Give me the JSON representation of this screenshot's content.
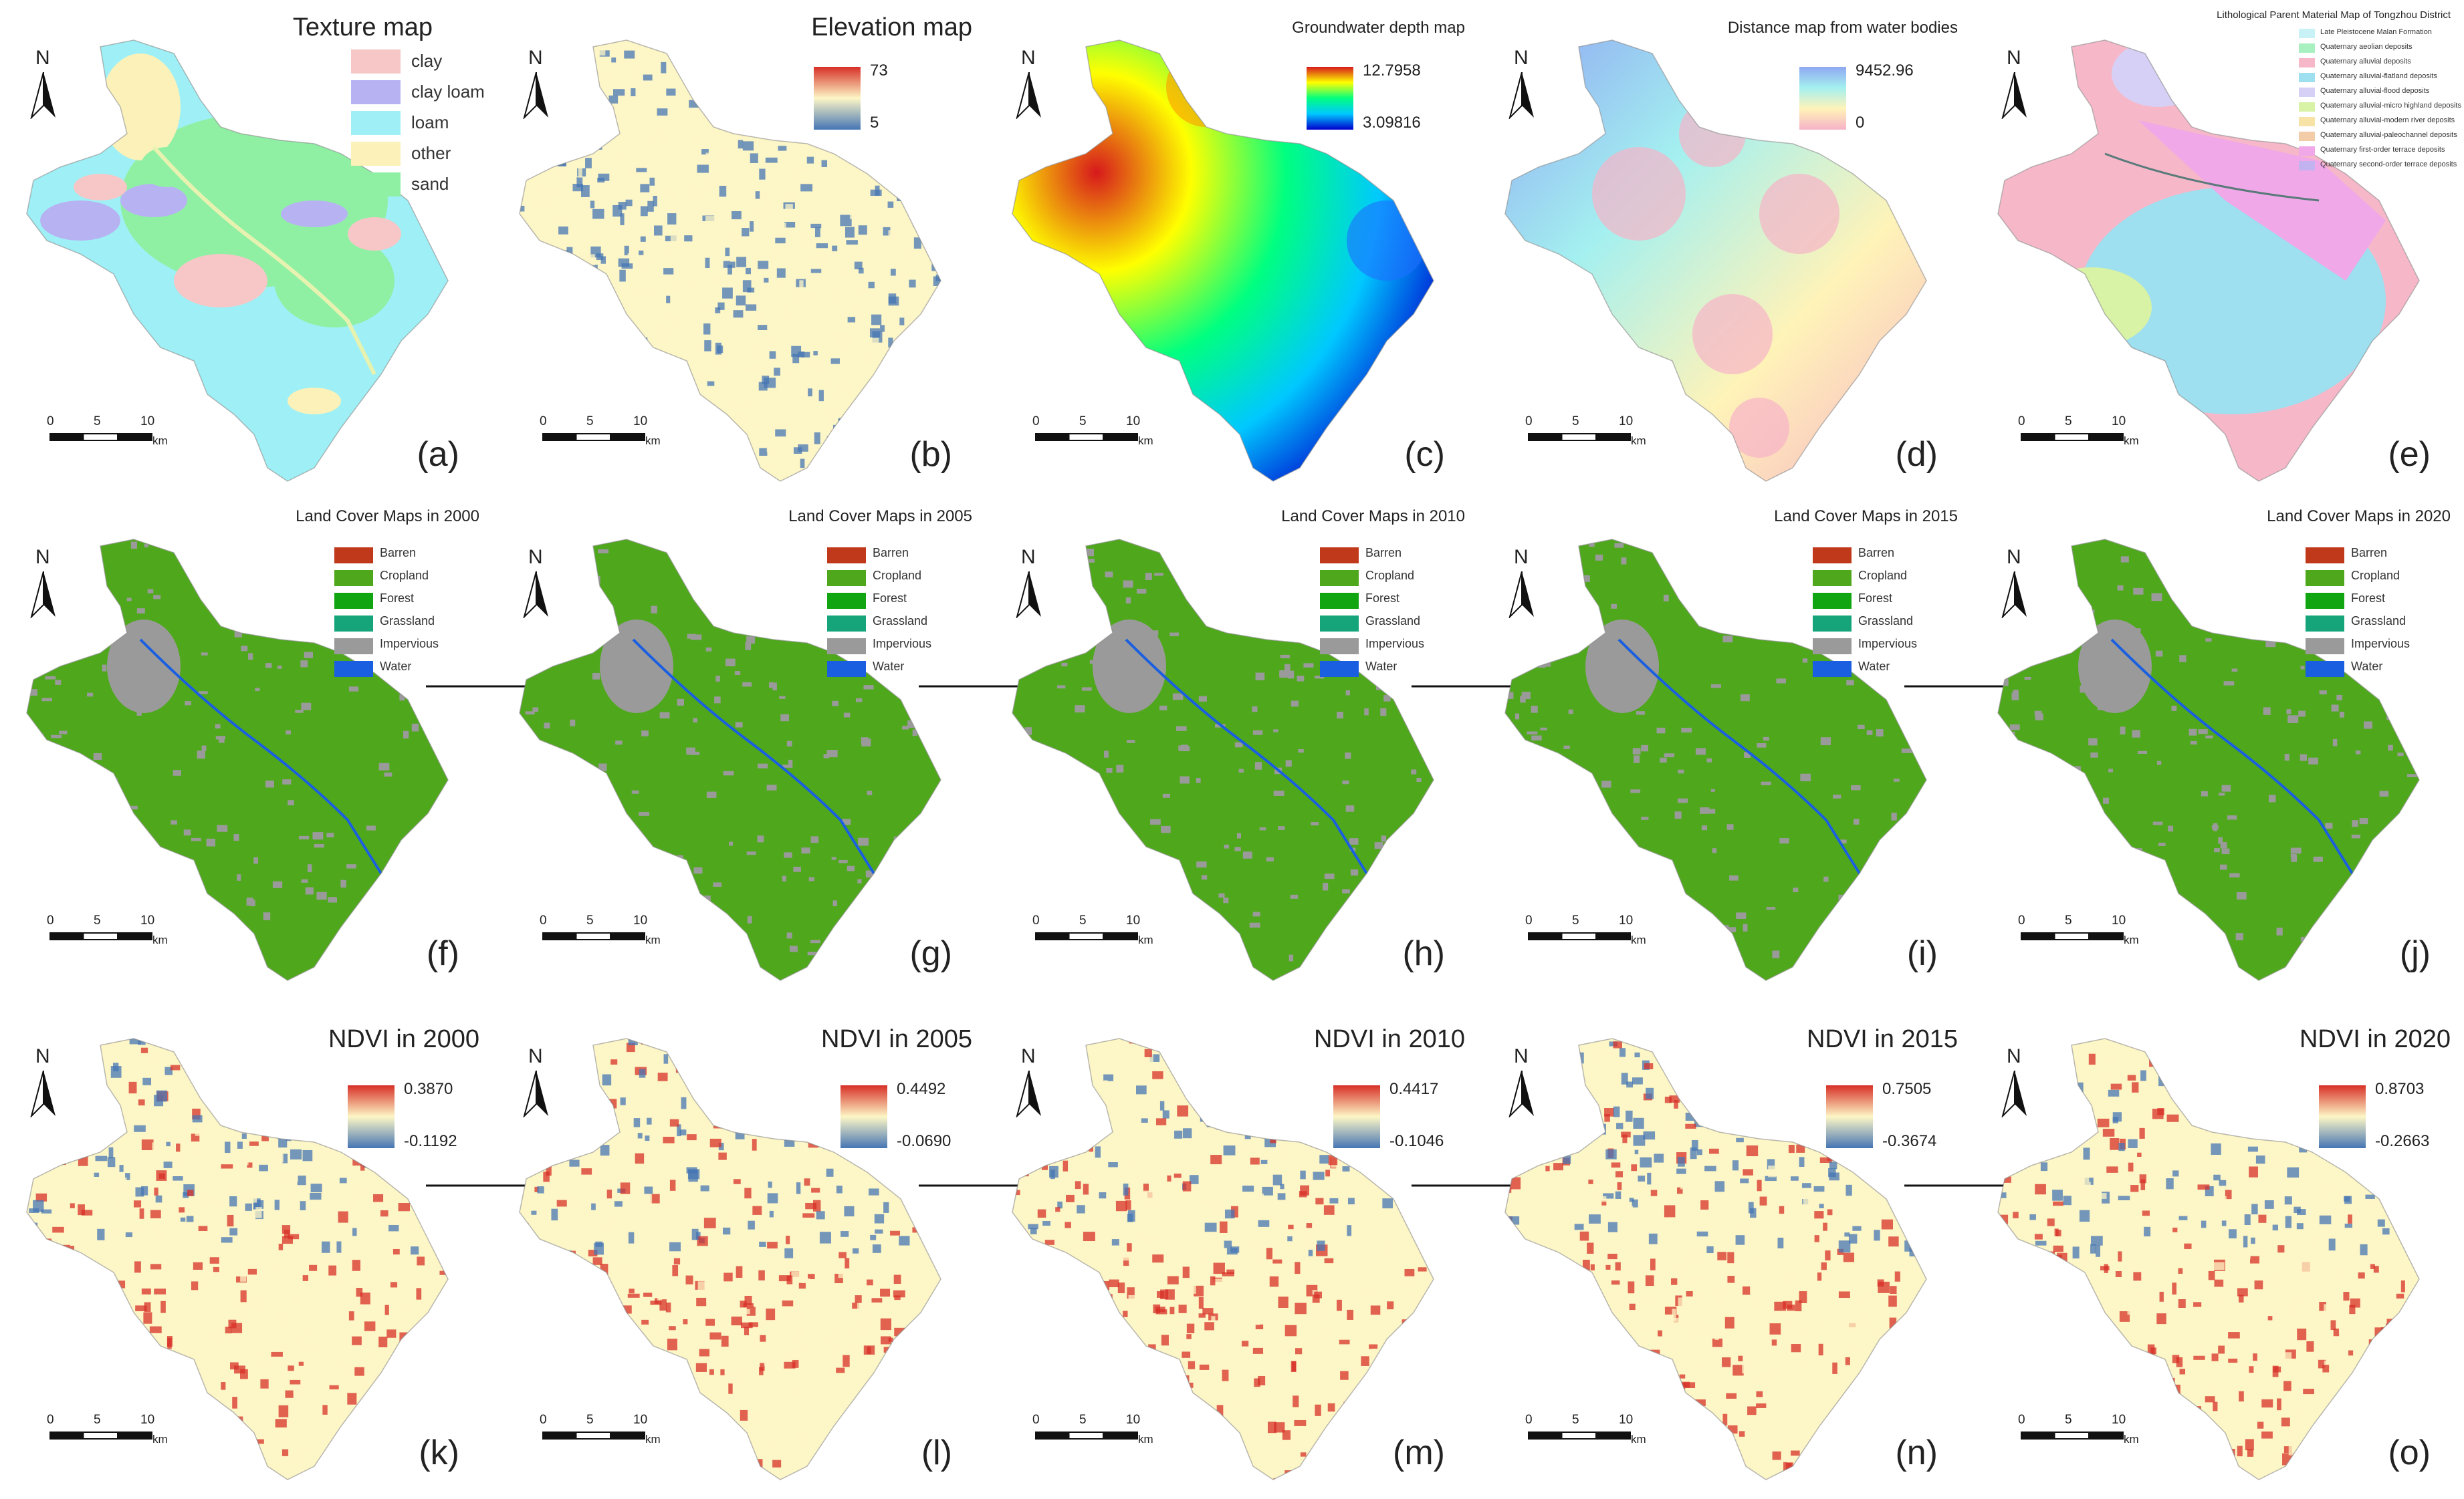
{
  "panels": [
    {
      "id": "a",
      "label": "(a)",
      "title": "Texture map",
      "kind": "texture",
      "legend": [
        "clay",
        "clay loam",
        "loam",
        "other",
        "sand"
      ],
      "legend_colors": [
        "#f6c7c6",
        "#b7b3f2",
        "#9ef0f6",
        "#fbf1b9",
        "#8ff0a4"
      ]
    },
    {
      "id": "b",
      "label": "(b)",
      "title": "Elevation map",
      "kind": "elevation",
      "ramp": {
        "max": "73",
        "min": "5",
        "colors": [
          "#d73027",
          "#fdf6c6",
          "#4575b4"
        ]
      }
    },
    {
      "id": "c",
      "label": "(c)",
      "title": "Groundwater depth map",
      "kind": "groundwater",
      "ramp": {
        "max": "12.7958",
        "min": "3.09816",
        "colors": [
          "#d7191c",
          "#ffff00",
          "#00ff80",
          "#00c8ff",
          "#0000cc"
        ]
      }
    },
    {
      "id": "d",
      "label": "(d)",
      "title": "Distance map from water bodies",
      "kind": "distance",
      "ramp": {
        "max": "9452.96",
        "min": "0",
        "colors": [
          "#8fa8f2",
          "#a4f0f0",
          "#fff3b8",
          "#f6b3c7"
        ]
      }
    },
    {
      "id": "e",
      "label": "(e)",
      "title": "Lithological Parent Material Map of Tongzhou District",
      "kind": "litho",
      "legend": [
        "Late Pleistocene Malan Formation",
        "Quaternary aeolian deposits",
        "Quaternary alluvial deposits",
        "Quaternary alluvial-flatland deposits",
        "Quaternary alluvial-flood deposits",
        "Quaternary alluvial-micro highland deposits",
        "Quaternary alluvial-modern river deposits",
        "Quaternary alluvial-paleochannel deposits",
        "Quaternary first-order terrace deposits",
        "Quaternary second-order terrace deposits"
      ],
      "legend_colors": [
        "#c9f2f6",
        "#a8f0c0",
        "#f6b8c9",
        "#9edff0",
        "#d6d0f6",
        "#d8f2a6",
        "#f7e3a6",
        "#f3cca8",
        "#f0a8e8",
        "#c2b3f0"
      ]
    },
    {
      "id": "f",
      "label": "(f)",
      "title": "Land Cover Maps in 2000",
      "kind": "landcover",
      "arrow": true
    },
    {
      "id": "g",
      "label": "(g)",
      "title": "Land Cover Maps in 2005",
      "kind": "landcover",
      "arrow": true
    },
    {
      "id": "h",
      "label": "(h)",
      "title": "Land Cover Maps in 2010",
      "kind": "landcover",
      "arrow": true
    },
    {
      "id": "i",
      "label": "(i)",
      "title": "Land Cover Maps in 2015",
      "kind": "landcover",
      "arrow": true
    },
    {
      "id": "j",
      "label": "(j)",
      "title": "Land Cover Maps in 2020",
      "kind": "landcover",
      "arrow": false
    },
    {
      "id": "k",
      "label": "(k)",
      "title": "NDVI in 2000",
      "kind": "ndvi",
      "arrow": true,
      "ramp": {
        "max": "0.3870",
        "min": "-0.1192"
      }
    },
    {
      "id": "l",
      "label": "(l)",
      "title": "NDVI in 2005",
      "kind": "ndvi",
      "arrow": true,
      "ramp": {
        "max": "0.4492",
        "min": "-0.0690"
      }
    },
    {
      "id": "m",
      "label": "(m)",
      "title": "NDVI in 2010",
      "kind": "ndvi",
      "arrow": true,
      "ramp": {
        "max": "0.4417",
        "min": "-0.1046"
      }
    },
    {
      "id": "n",
      "label": "(n)",
      "title": "NDVI in 2015",
      "kind": "ndvi",
      "arrow": true,
      "ramp": {
        "max": "0.7505",
        "min": "-0.3674"
      }
    },
    {
      "id": "o",
      "label": "(o)",
      "title": "NDVI in 2020",
      "kind": "ndvi",
      "arrow": false,
      "ramp": {
        "max": "0.8703",
        "min": "-0.2663"
      }
    }
  ],
  "landcover_legend": [
    "Barren",
    "Cropland",
    "Forest",
    "Grassland",
    "Impervious",
    "Water"
  ],
  "landcover_colors": [
    "#c0391b",
    "#4fa81c",
    "#11a511",
    "#16a57a",
    "#9a9a9a",
    "#1a5fe0"
  ],
  "ndvi_colors": [
    "#d73027",
    "#fdf6c6",
    "#4575b4"
  ],
  "north_label": "N",
  "scale": {
    "ticks": [
      "0",
      "5",
      "10"
    ],
    "unit": "km"
  }
}
